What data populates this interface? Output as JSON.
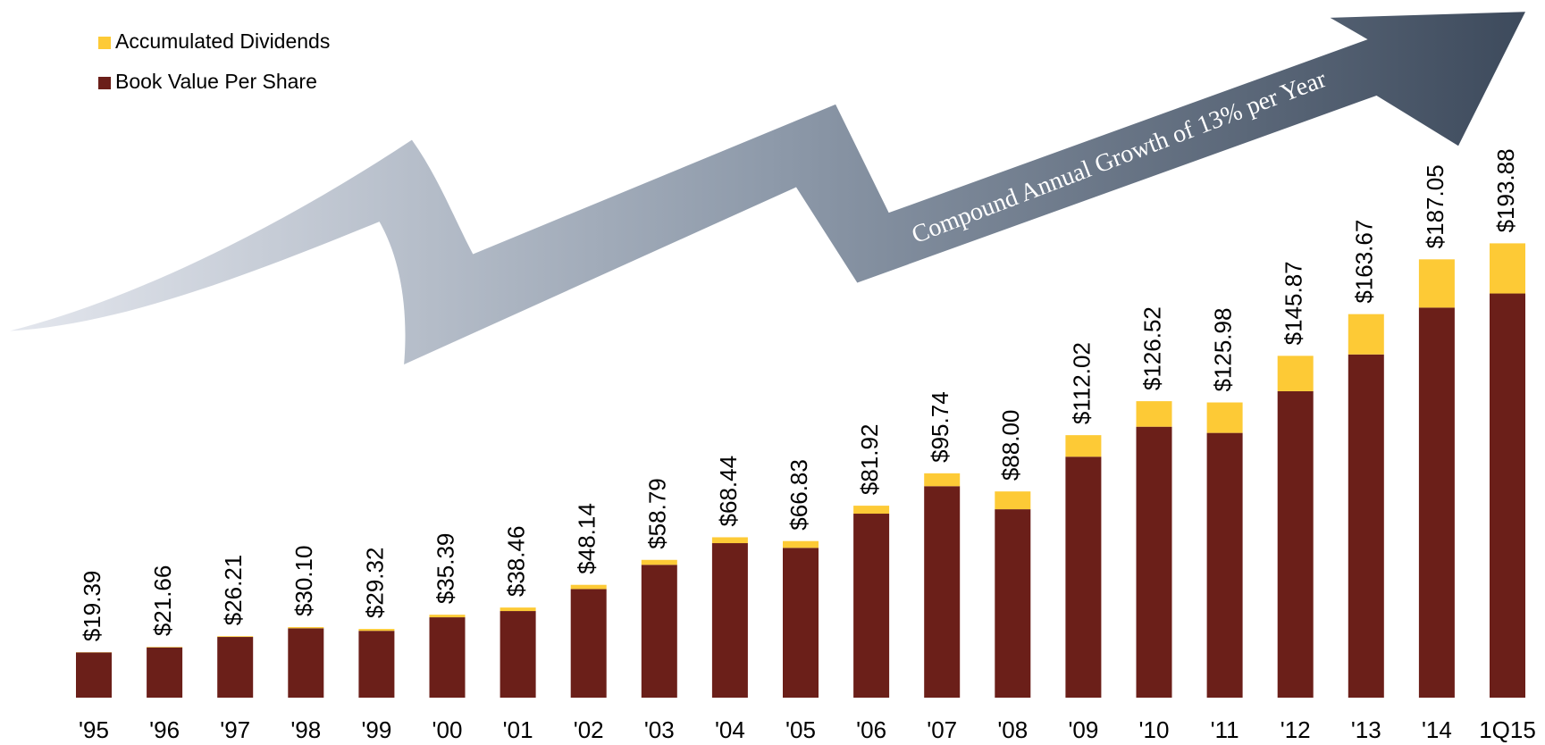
{
  "chart_data": {
    "type": "stacked_bar",
    "annotation": "Compound Annual Growth of 13% per Year",
    "categories": [
      "'95",
      "'96",
      "'97",
      "'98",
      "'99",
      "'00",
      "'01",
      "'02",
      "'03",
      "'04",
      "'05",
      "'06",
      "'07",
      "'08",
      "'09",
      "'10",
      "'11",
      "'12",
      "'13",
      "'14",
      "1Q15"
    ],
    "series": [
      {
        "name": "Book Value Per Share",
        "color": "#6b1f19",
        "values": [
          19.29,
          21.46,
          25.91,
          29.6,
          28.52,
          34.29,
          36.96,
          46.34,
          56.69,
          65.94,
          63.93,
          78.52,
          90.24,
          80.4,
          102.82,
          115.62,
          112.98,
          130.77,
          146.47,
          166.45,
          172.48
        ]
      },
      {
        "name": "Accumulated Dividends",
        "color": "#fdca36",
        "values": [
          0.1,
          0.2,
          0.3,
          0.5,
          0.8,
          1.1,
          1.5,
          1.8,
          2.1,
          2.5,
          2.9,
          3.4,
          5.5,
          7.6,
          9.2,
          10.9,
          13.0,
          15.1,
          17.2,
          20.6,
          21.4
        ]
      }
    ],
    "totals": {
      "values": [
        19.39,
        21.66,
        26.21,
        30.1,
        29.32,
        35.39,
        38.46,
        48.14,
        58.79,
        68.44,
        66.83,
        81.92,
        95.74,
        88.0,
        112.02,
        126.52,
        125.98,
        145.87,
        163.67,
        187.05,
        193.88
      ],
      "value_labels": [
        "$19.39",
        "$21.66",
        "$26.21",
        "$30.10",
        "$29.32",
        "$35.39",
        "$38.46",
        "$48.14",
        "$58.79",
        "$68.44",
        "$66.83",
        "$81.92",
        "$95.74",
        "$88.00",
        "$112.02",
        "$126.52",
        "$125.98",
        "$145.87",
        "$163.67",
        "$187.05",
        "$193.88"
      ]
    },
    "ylim": [
      0,
      215
    ]
  }
}
